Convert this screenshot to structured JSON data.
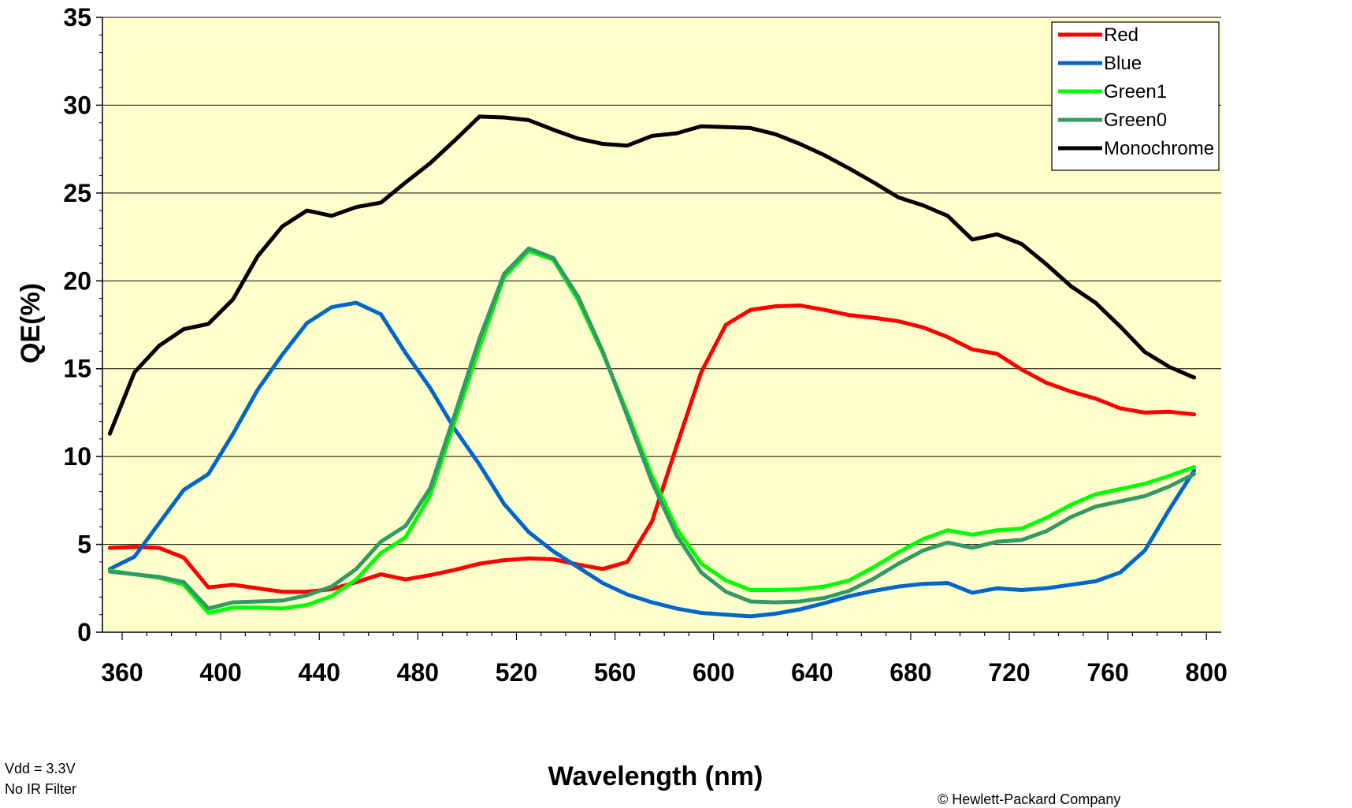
{
  "chart_data": {
    "type": "line",
    "title": "",
    "xlabel": "Wavelength (nm)",
    "ylabel": "QE(%)",
    "xlim": [
      352,
      806
    ],
    "ylim": [
      0,
      35
    ],
    "xticks": [
      360,
      400,
      440,
      480,
      520,
      560,
      600,
      640,
      680,
      720,
      760,
      800
    ],
    "yticks": [
      0,
      5,
      10,
      15,
      20,
      25,
      30,
      35
    ],
    "grid": "horizontal",
    "background": "#FFFFCC",
    "legend_position": "top-right",
    "x": [
      355,
      365,
      375,
      385,
      395,
      405,
      415,
      425,
      435,
      445,
      455,
      465,
      475,
      485,
      495,
      505,
      515,
      525,
      535,
      545,
      555,
      565,
      575,
      585,
      595,
      605,
      615,
      625,
      635,
      645,
      655,
      665,
      675,
      685,
      695,
      705,
      715,
      725,
      735,
      745,
      755,
      765,
      775,
      785,
      795
    ],
    "series": [
      {
        "name": "Red",
        "color": "#FF0000",
        "values": [
          4.8,
          4.85,
          4.8,
          4.25,
          2.55,
          2.7,
          2.5,
          2.3,
          2.3,
          2.45,
          2.85,
          3.3,
          3.0,
          3.25,
          3.55,
          3.9,
          4.1,
          4.2,
          4.15,
          3.85,
          3.6,
          4.0,
          6.3,
          10.6,
          14.8,
          17.5,
          18.35,
          18.55,
          18.6,
          18.35,
          18.05,
          17.9,
          17.7,
          17.35,
          16.8,
          16.1,
          15.85,
          14.95,
          14.2,
          13.7,
          13.3,
          12.75,
          12.5,
          12.55,
          12.4
        ]
      },
      {
        "name": "Blue",
        "color": "#0066CC",
        "values": [
          3.6,
          4.3,
          6.2,
          8.1,
          9.0,
          11.3,
          13.8,
          15.8,
          17.6,
          18.5,
          18.75,
          18.1,
          15.9,
          13.9,
          11.55,
          9.55,
          7.3,
          5.7,
          4.6,
          3.7,
          2.8,
          2.15,
          1.7,
          1.35,
          1.1,
          1.0,
          0.9,
          1.05,
          1.3,
          1.65,
          2.05,
          2.35,
          2.6,
          2.75,
          2.8,
          2.25,
          2.5,
          2.4,
          2.5,
          2.7,
          2.9,
          3.4,
          4.65,
          7.0,
          9.2
        ]
      },
      {
        "name": "Green1",
        "color": "#00FF00",
        "values": [
          3.5,
          3.3,
          3.1,
          2.7,
          1.1,
          1.4,
          1.4,
          1.35,
          1.55,
          2.05,
          3.0,
          4.5,
          5.4,
          7.8,
          12.0,
          16.2,
          20.2,
          21.7,
          21.2,
          18.9,
          15.9,
          12.5,
          8.9,
          5.9,
          3.9,
          2.95,
          2.4,
          2.4,
          2.45,
          2.6,
          2.95,
          3.7,
          4.55,
          5.3,
          5.8,
          5.55,
          5.8,
          5.9,
          6.5,
          7.25,
          7.85,
          8.15,
          8.45,
          8.9,
          9.4
        ]
      },
      {
        "name": "Green0",
        "color": "#339966",
        "values": [
          3.45,
          3.3,
          3.15,
          2.85,
          1.35,
          1.7,
          1.75,
          1.8,
          2.1,
          2.6,
          3.6,
          5.15,
          6.05,
          8.2,
          12.4,
          16.7,
          20.4,
          21.85,
          21.3,
          19.1,
          16.0,
          12.3,
          8.55,
          5.5,
          3.4,
          2.3,
          1.75,
          1.7,
          1.75,
          1.95,
          2.35,
          3.05,
          3.9,
          4.65,
          5.1,
          4.8,
          5.15,
          5.25,
          5.75,
          6.55,
          7.15,
          7.45,
          7.75,
          8.3,
          9.0
        ]
      },
      {
        "name": "Monochrome",
        "color": "#000000",
        "values": [
          11.3,
          14.8,
          16.3,
          17.25,
          17.55,
          18.95,
          21.4,
          23.1,
          24.0,
          23.7,
          24.2,
          24.45,
          25.6,
          26.7,
          28.0,
          29.35,
          29.3,
          29.15,
          28.6,
          28.1,
          27.8,
          27.7,
          28.25,
          28.4,
          28.8,
          28.75,
          28.7,
          28.35,
          27.8,
          27.15,
          26.4,
          25.6,
          24.75,
          24.3,
          23.7,
          22.35,
          22.65,
          22.1,
          20.95,
          19.7,
          18.75,
          17.4,
          15.95,
          15.1,
          14.5
        ]
      }
    ]
  },
  "notes": {
    "line1": "Vdd = 3.3V",
    "line2": "No IR Filter",
    "copyright": "© Hewlett-Packard Company"
  }
}
